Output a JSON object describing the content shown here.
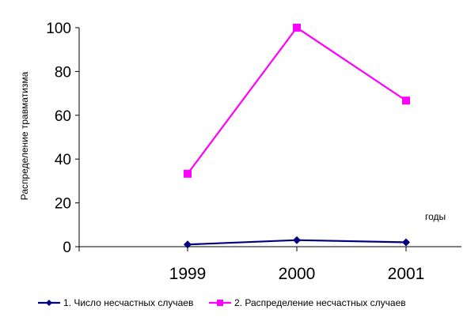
{
  "chart_data": {
    "type": "line",
    "title": "",
    "xlabel": "годы",
    "ylabel": "Распределение травматизма",
    "categories": [
      "1999",
      "2000",
      "2001"
    ],
    "ylim": [
      0,
      100
    ],
    "yticks": [
      0,
      20,
      40,
      60,
      80,
      100
    ],
    "grid": false,
    "legend_position": "bottom",
    "series": [
      {
        "name": "1. Число несчастных случаев",
        "values": [
          1,
          3,
          2
        ],
        "color": "#000080",
        "marker": "diamond"
      },
      {
        "name": "2. Распределение несчастных случаев",
        "values": [
          33.3,
          100,
          66.7
        ],
        "color": "#FF00FF",
        "marker": "square"
      }
    ]
  }
}
